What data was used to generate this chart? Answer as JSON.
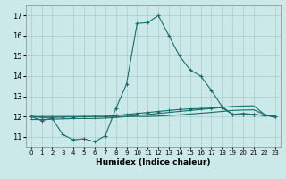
{
  "xlabel": "Humidex (Indice chaleur)",
  "xlim": [
    -0.5,
    23.5
  ],
  "ylim": [
    10.5,
    17.5
  ],
  "yticks": [
    11,
    12,
    13,
    14,
    15,
    16,
    17
  ],
  "xticks": [
    0,
    1,
    2,
    3,
    4,
    5,
    6,
    7,
    8,
    9,
    10,
    11,
    12,
    13,
    14,
    15,
    16,
    17,
    18,
    19,
    20,
    21,
    22,
    23
  ],
  "background_color": "#cce9e9",
  "grid_color": "#aacccc",
  "line_color": "#1a6b6b",
  "line1_x": [
    0,
    1,
    2,
    3,
    4,
    5,
    6,
    7,
    8,
    9,
    10,
    11,
    12,
    13,
    14,
    15,
    16,
    17,
    18,
    19,
    20,
    21,
    22,
    23
  ],
  "line1_y": [
    12.0,
    11.8,
    11.9,
    11.1,
    10.85,
    10.9,
    10.75,
    11.05,
    12.4,
    13.6,
    16.6,
    16.65,
    17.0,
    16.0,
    15.0,
    14.3,
    14.0,
    13.3,
    12.5,
    12.1,
    12.15,
    12.1,
    12.05,
    12.0
  ],
  "line2_x": [
    0,
    1,
    2,
    3,
    4,
    5,
    6,
    7,
    8,
    9,
    10,
    11,
    12,
    13,
    14,
    15,
    16,
    17,
    18,
    19,
    20,
    21,
    22,
    23
  ],
  "line2_y": [
    12.0,
    11.95,
    11.95,
    11.97,
    11.98,
    11.99,
    12.0,
    12.0,
    12.05,
    12.1,
    12.15,
    12.2,
    12.25,
    12.3,
    12.35,
    12.38,
    12.4,
    12.42,
    12.44,
    12.1,
    12.1,
    12.1,
    12.05,
    12.0
  ],
  "line3_x": [
    0,
    1,
    2,
    3,
    4,
    5,
    6,
    7,
    8,
    9,
    10,
    11,
    12,
    13,
    14,
    15,
    16,
    17,
    18,
    19,
    20,
    21,
    22,
    23
  ],
  "line3_y": [
    12.0,
    12.0,
    12.0,
    12.0,
    12.0,
    12.0,
    12.0,
    12.0,
    12.0,
    12.0,
    12.0,
    12.0,
    12.02,
    12.05,
    12.08,
    12.12,
    12.16,
    12.2,
    12.25,
    12.3,
    12.32,
    12.33,
    12.1,
    12.0
  ],
  "line4_x": [
    0,
    1,
    2,
    3,
    4,
    5,
    6,
    7,
    8,
    9,
    10,
    11,
    12,
    13,
    14,
    15,
    16,
    17,
    18,
    19,
    20,
    21,
    22,
    23
  ],
  "line4_y": [
    11.85,
    11.85,
    11.87,
    11.88,
    11.9,
    11.9,
    11.9,
    11.92,
    11.95,
    12.0,
    12.05,
    12.1,
    12.15,
    12.2,
    12.25,
    12.3,
    12.35,
    12.4,
    12.45,
    12.5,
    12.52,
    12.53,
    12.1,
    11.95
  ]
}
